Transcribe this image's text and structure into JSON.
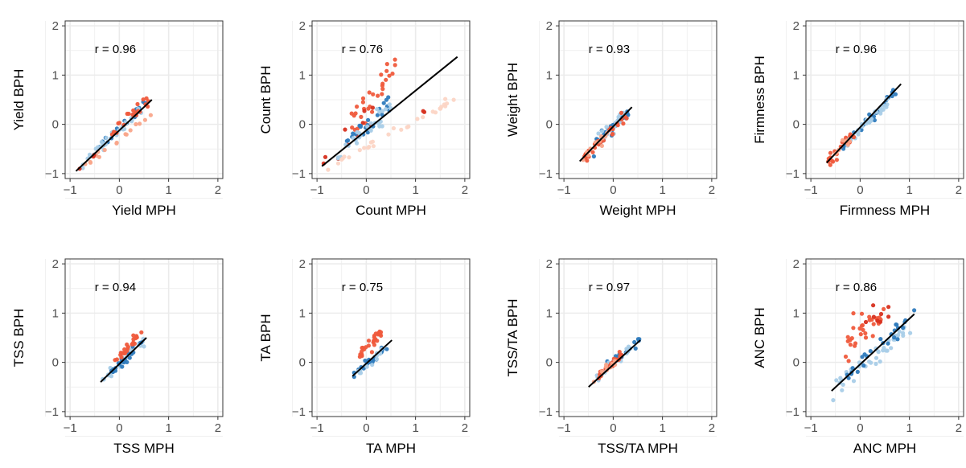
{
  "colors": {
    "dark_red": "#d7301f",
    "red": "#ef5a3c",
    "light_red": "#f9a58a",
    "pale_red": "#fcd5c5",
    "dark_blue": "#2f7bbd",
    "blue": "#5b9fd1",
    "light_blue": "#a9cde8",
    "pale_blue": "#d4e6f4",
    "line": "#000000",
    "panel_grid": "#ebebeb"
  },
  "chart_data": [
    {
      "type": "scatter",
      "id": "yield",
      "xlabel": "Yield MPH",
      "ylabel": "Yield BPH",
      "annotation": "r = 0.96",
      "xlim": [
        -1.1,
        2.1
      ],
      "ylim": [
        -1.1,
        2.1
      ],
      "xticks": [
        "−1",
        "0",
        "1",
        "2"
      ],
      "yticks": [
        "−1",
        "0",
        "1",
        "2"
      ],
      "fit": [
        [
          -0.88,
          -0.95
        ],
        [
          0.66,
          0.5
        ]
      ],
      "clouds": [
        {
          "color": "dark_blue",
          "n": 25,
          "x": [
            -0.6,
            0.55
          ],
          "slope": 0.95,
          "icpt": -0.07,
          "sd": 0.05
        },
        {
          "color": "light_blue",
          "n": 35,
          "x": [
            -0.75,
            0.5
          ],
          "slope": 0.95,
          "icpt": -0.1,
          "sd": 0.05
        },
        {
          "color": "red",
          "n": 22,
          "x": [
            -0.4,
            0.6
          ],
          "slope": 0.95,
          "icpt": -0.05,
          "sd": 0.06
        },
        {
          "color": "light_red",
          "n": 16,
          "x": [
            -0.75,
            0.65
          ],
          "slope": 0.75,
          "icpt": -0.3,
          "sd": 0.04
        },
        {
          "color": "dark_red",
          "n": 3,
          "x": [
            -0.9,
            -0.5
          ],
          "slope": 0.95,
          "icpt": -0.1,
          "sd": 0.04
        }
      ]
    },
    {
      "type": "scatter",
      "id": "count",
      "xlabel": "Count MPH",
      "ylabel": "Count BPH",
      "annotation": "r = 0.76",
      "xlim": [
        -1.1,
        2.1
      ],
      "ylim": [
        -1.1,
        2.1
      ],
      "xticks": [
        "−1",
        "0",
        "1",
        "2"
      ],
      "yticks": [
        "−1",
        "0",
        "1",
        "2"
      ],
      "fit": [
        [
          -0.9,
          -0.85
        ],
        [
          1.85,
          1.37
        ]
      ],
      "clouds": [
        {
          "color": "red",
          "n": 30,
          "x": [
            -0.3,
            0.6
          ],
          "slope": 1.7,
          "icpt": 0.3,
          "sd": 0.2
        },
        {
          "color": "dark_red",
          "n": 10,
          "x": [
            -0.9,
            0.2
          ],
          "slope": 1.2,
          "icpt": 0.15,
          "sd": 0.12
        },
        {
          "color": "dark_blue",
          "n": 22,
          "x": [
            -0.4,
            0.5
          ],
          "slope": 0.8,
          "icpt": 0.0,
          "sd": 0.1
        },
        {
          "color": "light_blue",
          "n": 28,
          "x": [
            -0.6,
            0.5
          ],
          "slope": 0.9,
          "icpt": -0.1,
          "sd": 0.1
        },
        {
          "color": "pale_red",
          "n": 30,
          "x": [
            -0.8,
            1.8
          ],
          "slope": 0.53,
          "icpt": -0.45,
          "sd": 0.04
        },
        {
          "color": "dark_red",
          "n": 2,
          "x": [
            1.0,
            1.2
          ],
          "slope": 0.55,
          "icpt": -0.4,
          "sd": 0.03
        }
      ]
    },
    {
      "type": "scatter",
      "id": "weight",
      "xlabel": "Weight MPH",
      "ylabel": "Weight BPH",
      "annotation": "r = 0.93",
      "xlim": [
        -1.1,
        2.1
      ],
      "ylim": [
        -1.1,
        2.1
      ],
      "xticks": [
        "−1",
        "0",
        "1",
        "2"
      ],
      "yticks": [
        "−1",
        "0",
        "1",
        "2"
      ],
      "fit": [
        [
          -0.68,
          -0.75
        ],
        [
          0.38,
          0.35
        ]
      ],
      "clouds": [
        {
          "color": "dark_blue",
          "n": 30,
          "x": [
            -0.4,
            0.35
          ],
          "slope": 1.0,
          "icpt": -0.05,
          "sd": 0.06
        },
        {
          "color": "light_blue",
          "n": 20,
          "x": [
            -0.3,
            0.3
          ],
          "slope": 1.0,
          "icpt": -0.05,
          "sd": 0.06
        },
        {
          "color": "red",
          "n": 28,
          "x": [
            -0.6,
            0.3
          ],
          "slope": 0.95,
          "icpt": -0.12,
          "sd": 0.07
        },
        {
          "color": "light_red",
          "n": 12,
          "x": [
            -0.7,
            -0.1
          ],
          "slope": 0.95,
          "icpt": -0.1,
          "sd": 0.05
        }
      ]
    },
    {
      "type": "scatter",
      "id": "firmness",
      "xlabel": "Firmness MPH",
      "ylabel": "Firmness BPH",
      "annotation": "r = 0.96",
      "xlim": [
        -1.1,
        2.1
      ],
      "ylim": [
        -1.1,
        2.1
      ],
      "xticks": [
        "−1",
        "0",
        "1",
        "2"
      ],
      "yticks": [
        "−1",
        "0",
        "1",
        "2"
      ],
      "fit": [
        [
          -0.68,
          -0.78
        ],
        [
          0.83,
          0.82
        ]
      ],
      "clouds": [
        {
          "color": "dark_blue",
          "n": 30,
          "x": [
            -0.4,
            0.75
          ],
          "slope": 1.05,
          "icpt": -0.08,
          "sd": 0.05
        },
        {
          "color": "light_blue",
          "n": 35,
          "x": [
            -0.3,
            0.6
          ],
          "slope": 1.0,
          "icpt": -0.12,
          "sd": 0.06
        },
        {
          "color": "red",
          "n": 20,
          "x": [
            -0.65,
            -0.1
          ],
          "slope": 1.05,
          "icpt": -0.08,
          "sd": 0.06
        },
        {
          "color": "light_red",
          "n": 8,
          "x": [
            -0.6,
            -0.2
          ],
          "slope": 1.05,
          "icpt": -0.05,
          "sd": 0.05
        }
      ]
    },
    {
      "type": "scatter",
      "id": "tss",
      "xlabel": "TSS MPH",
      "ylabel": "TSS BPH",
      "annotation": "r = 0.94",
      "xlim": [
        -1.1,
        2.1
      ],
      "ylim": [
        -1.1,
        2.1
      ],
      "xticks": [
        "−1",
        "0",
        "1",
        "2"
      ],
      "yticks": [
        "−1",
        "0",
        "1",
        "2"
      ],
      "fit": [
        [
          -0.38,
          -0.4
        ],
        [
          0.55,
          0.5
        ]
      ],
      "clouds": [
        {
          "color": "light_blue",
          "n": 28,
          "x": [
            -0.35,
            0.55
          ],
          "slope": 1.0,
          "icpt": -0.05,
          "sd": 0.05
        },
        {
          "color": "dark_blue",
          "n": 22,
          "x": [
            -0.2,
            0.45
          ],
          "slope": 0.95,
          "icpt": -0.05,
          "sd": 0.05
        },
        {
          "color": "red",
          "n": 26,
          "x": [
            -0.1,
            0.45
          ],
          "slope": 1.1,
          "icpt": 0.12,
          "sd": 0.06
        }
      ]
    },
    {
      "type": "scatter",
      "id": "ta",
      "xlabel": "TA MPH",
      "ylabel": "TA  BPH",
      "annotation": "r = 0.75",
      "xlim": [
        -1.1,
        2.1
      ],
      "ylim": [
        -1.1,
        2.1
      ],
      "xticks": [
        "−1",
        "0",
        "1",
        "2"
      ],
      "yticks": [
        "−1",
        "0",
        "1",
        "2"
      ],
      "fit": [
        [
          -0.28,
          -0.28
        ],
        [
          0.52,
          0.45
        ]
      ],
      "clouds": [
        {
          "color": "dark_blue",
          "n": 26,
          "x": [
            -0.25,
            0.45
          ],
          "slope": 0.9,
          "icpt": -0.05,
          "sd": 0.05
        },
        {
          "color": "light_blue",
          "n": 14,
          "x": [
            -0.2,
            0.35
          ],
          "slope": 0.9,
          "icpt": -0.08,
          "sd": 0.05
        },
        {
          "color": "red",
          "n": 28,
          "x": [
            -0.15,
            0.3
          ],
          "slope": 1.1,
          "icpt": 0.28,
          "sd": 0.07
        }
      ]
    },
    {
      "type": "scatter",
      "id": "tssta",
      "xlabel": "TSS/TA MPH",
      "ylabel": "TSS/TA BPH",
      "annotation": "r = 0.97",
      "xlim": [
        -1.1,
        2.1
      ],
      "ylim": [
        -1.1,
        2.1
      ],
      "xticks": [
        "−1",
        "0",
        "1",
        "2"
      ],
      "yticks": [
        "−1",
        "0",
        "1",
        "2"
      ],
      "fit": [
        [
          -0.5,
          -0.5
        ],
        [
          0.55,
          0.45
        ]
      ],
      "clouds": [
        {
          "color": "dark_blue",
          "n": 20,
          "x": [
            -0.2,
            0.55
          ],
          "slope": 0.85,
          "icpt": 0.0,
          "sd": 0.04
        },
        {
          "color": "light_blue",
          "n": 22,
          "x": [
            -0.35,
            0.35
          ],
          "slope": 0.9,
          "icpt": -0.02,
          "sd": 0.04
        },
        {
          "color": "red",
          "n": 28,
          "x": [
            -0.3,
            0.2
          ],
          "slope": 0.9,
          "icpt": 0.0,
          "sd": 0.04
        },
        {
          "color": "light_red",
          "n": 10,
          "x": [
            -0.4,
            0.1
          ],
          "slope": 0.9,
          "icpt": -0.02,
          "sd": 0.04
        }
      ]
    },
    {
      "type": "scatter",
      "id": "anc",
      "xlabel": "ANC MPH",
      "ylabel": "ANC BPH",
      "annotation": "r = 0.86",
      "xlim": [
        -1.1,
        2.1
      ],
      "ylim": [
        -1.1,
        2.1
      ],
      "xticks": [
        "−1",
        "0",
        "1",
        "2"
      ],
      "yticks": [
        "−1",
        "0",
        "1",
        "2"
      ],
      "fit": [
        [
          -0.58,
          -0.58
        ],
        [
          1.1,
          0.98
        ]
      ],
      "clouds": [
        {
          "color": "light_blue",
          "n": 40,
          "x": [
            -0.55,
            1.05
          ],
          "slope": 0.85,
          "icpt": -0.12,
          "sd": 0.1
        },
        {
          "color": "dark_blue",
          "n": 25,
          "x": [
            -0.3,
            1.1
          ],
          "slope": 0.9,
          "icpt": -0.02,
          "sd": 0.08
        },
        {
          "color": "red",
          "n": 32,
          "x": [
            -0.3,
            0.6
          ],
          "slope": 0.9,
          "icpt": 0.55,
          "sd": 0.18
        },
        {
          "color": "dark_red",
          "n": 8,
          "x": [
            0.1,
            0.6
          ],
          "slope": 0.6,
          "icpt": 0.7,
          "sd": 0.2
        }
      ]
    }
  ]
}
